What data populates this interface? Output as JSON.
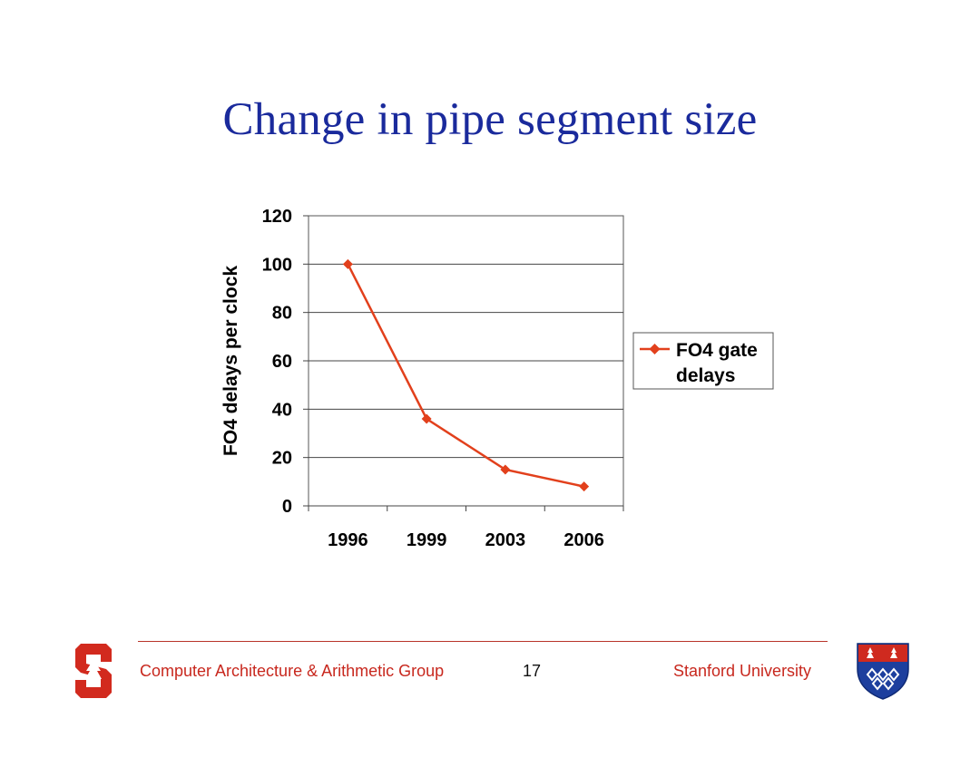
{
  "slide": {
    "title": "Change in pipe segment size"
  },
  "chart_data": {
    "type": "line",
    "categories": [
      "1996",
      "1999",
      "2003",
      "2006"
    ],
    "series": [
      {
        "name": "FO4 gate delays",
        "values": [
          100,
          36,
          15,
          8
        ],
        "color": "#e2401c",
        "marker": "diamond"
      }
    ],
    "ylabel": "FO4 delays per clock",
    "xlabel": "",
    "ylim": [
      0,
      120
    ],
    "yticks": [
      0,
      20,
      40,
      60,
      80,
      100,
      120
    ],
    "grid": true,
    "legend_position": "right",
    "legend_lines": [
      "FO4 gate",
      "delays"
    ]
  },
  "footer": {
    "group": "Computer Architecture & Arithmetic Group",
    "page_number": "17",
    "university": "Stanford University",
    "left_logo_icon": "stanford-block-s-tree-icon",
    "right_logo_icon": "crest-shield-icon",
    "accent_color": "#c8281e"
  }
}
